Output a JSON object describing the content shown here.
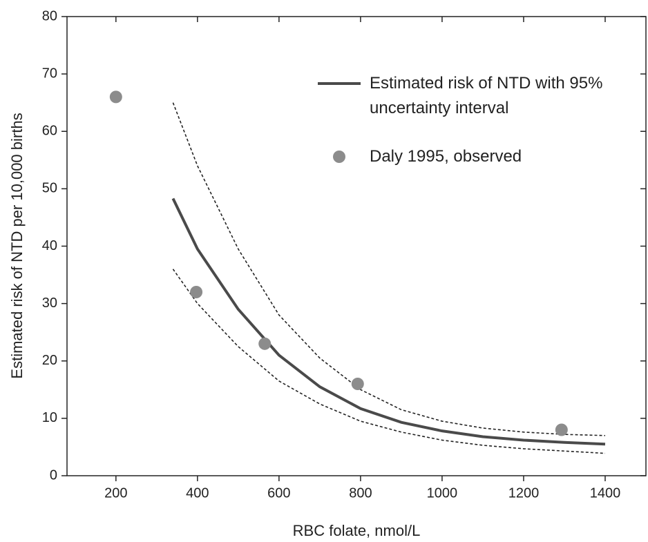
{
  "chart_data": {
    "type": "line",
    "x_label": "RBC folate, nmol/L",
    "y_label": "Estimated risk of NTD per 10,000 births",
    "xlim": [
      80,
      1500
    ],
    "xticks": [
      200,
      400,
      600,
      800,
      1000,
      1200,
      1400
    ],
    "ylim": [
      0,
      80
    ],
    "yticks": [
      0,
      10,
      20,
      30,
      40,
      50,
      60,
      70,
      80
    ],
    "grid": false,
    "series": [
      {
        "name": "Estimated risk of NTD with 95% uncertainty interval",
        "type": "line",
        "color": "#4a4a4a",
        "dashed": false,
        "x": [
          340,
          400,
          500,
          600,
          700,
          800,
          900,
          1000,
          1100,
          1200,
          1300,
          1400
        ],
        "values": [
          48.3,
          39.5,
          29,
          21,
          15.5,
          11.7,
          9.3,
          7.8,
          6.8,
          6.2,
          5.8,
          5.5
        ]
      },
      {
        "type": "line",
        "color": "#222222",
        "dashed": true,
        "x": [
          340,
          400,
          500,
          600,
          700,
          800,
          900,
          1000,
          1100,
          1200,
          1300,
          1400
        ],
        "values": [
          65,
          54,
          39.5,
          28,
          20.5,
          15,
          11.5,
          9.5,
          8.3,
          7.6,
          7.2,
          7.0
        ]
      },
      {
        "type": "line",
        "color": "#222222",
        "dashed": true,
        "x": [
          340,
          400,
          500,
          600,
          700,
          800,
          900,
          1000,
          1100,
          1200,
          1300,
          1400
        ],
        "values": [
          36,
          30,
          22.5,
          16.5,
          12.5,
          9.5,
          7.6,
          6.2,
          5.3,
          4.7,
          4.3,
          3.9
        ]
      },
      {
        "name": "Daly 1995, observed",
        "type": "scatter",
        "color": "#8c8c8c",
        "x": [
          200,
          397,
          565,
          793,
          1293
        ],
        "values": [
          66,
          32,
          23,
          16,
          8
        ]
      }
    ]
  }
}
